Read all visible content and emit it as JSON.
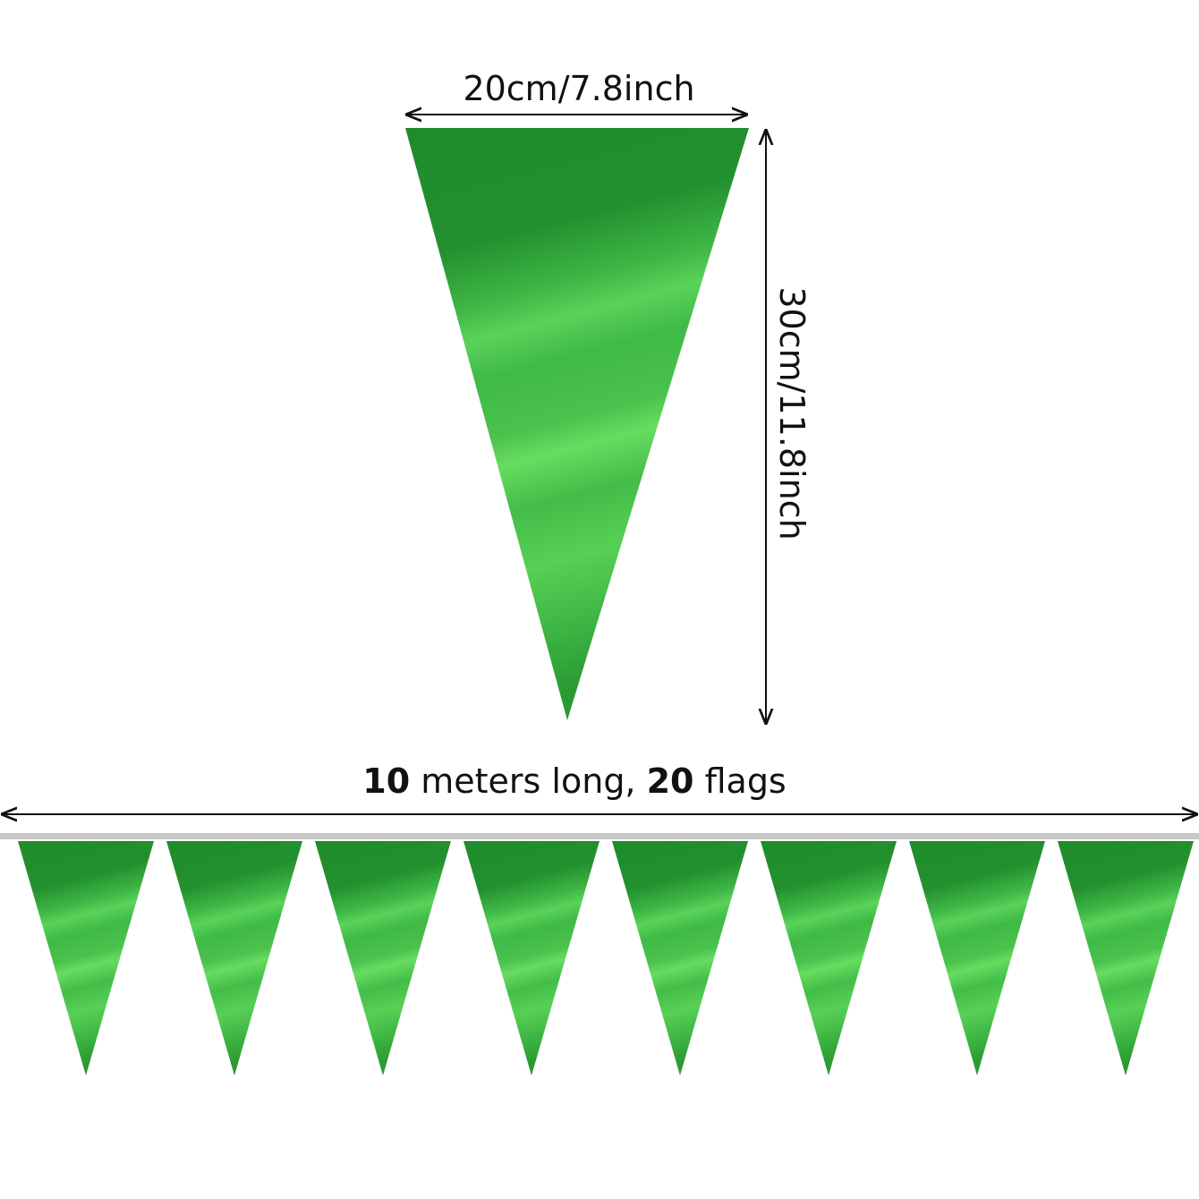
{
  "dimensions": {
    "width_label": "20cm/7.8inch",
    "height_label": "30cm/11.8inch",
    "length": {
      "meters": "10",
      "meters_text": "meters long,",
      "flags": "20",
      "flags_text": "flags"
    }
  }
}
